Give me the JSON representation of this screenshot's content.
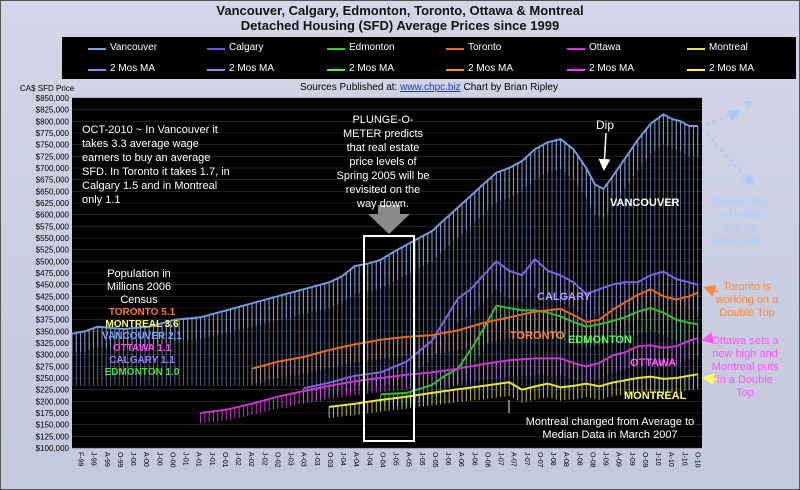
{
  "title_line1": "Vancouver, Calgary, Edmonton, Toronto, Ottawa & Montreal",
  "title_line2": "Detached Housing (SFD) Average Prices since 1999",
  "legend": [
    {
      "name": "Vancouver",
      "color": "#7aa3e0"
    },
    {
      "name": "Calgary",
      "color": "#7a4fe0"
    },
    {
      "name": "Edmonton",
      "color": "#39c83a"
    },
    {
      "name": "Toronto",
      "color": "#e06a2a"
    },
    {
      "name": "Ottawa",
      "color": "#d33ad3"
    },
    {
      "name": "Montreal",
      "color": "#e6e24a"
    }
  ],
  "ma_label": "2 Mos MA",
  "sources_label": "Sources Published at:",
  "sources_url": "www.chpc.biz",
  "credit": "Chart by Brian Ripley",
  "y_axis_label": "CA$ SFD Price",
  "annotations": {
    "oct2010": "OCT-2010 ~ In Vancouver it takes 3.3 average wage earners to buy an average SFD. In Toronto it takes 1.7, in Calgary 1.5 and in Montreal only 1.1",
    "plunge": "PLUNGE-O-METER predicts that real estate price levels of Spring 2005 will be revisited on the way down.",
    "dip": "Dip",
    "question": "?",
    "double_dip": "Double Dip or Double Top for Vancouver ?",
    "toronto_top": "Toronto is working on a Double Top",
    "ottawa_high": "Ottawa sets a new high and Montreal puts in a Double Top",
    "montreal_changed": "Montreal changed from Average to Median Data in March 2007",
    "population_header": "Population in Millions 2006 Census",
    "population": [
      {
        "text": "TORONTO 5.1",
        "color": "#ff7a2a"
      },
      {
        "text": "MONTREAL 3.6",
        "color": "#ffff55"
      },
      {
        "text": "VANCOUVER 2.1",
        "color": "#6fa8ff"
      },
      {
        "text": "OTTAWA 1.1",
        "color": "#ff4df0"
      },
      {
        "text": "CALGARY 1.1",
        "color": "#a07dff"
      },
      {
        "text": "EDMONTON 1.0",
        "color": "#44e044"
      }
    ]
  },
  "chart_data": {
    "type": "line",
    "title": "Vancouver, Calgary, Edmonton, Toronto, Ottawa & Montreal Detached Housing (SFD) Average Prices since 1999",
    "ylabel": "CA$ SFD Price",
    "ylim": [
      100000,
      850000
    ],
    "y_ticks": [
      "$100,000",
      "$125,000",
      "$150,000",
      "$175,000",
      "$200,000",
      "$225,000",
      "$250,000",
      "$275,000",
      "$300,000",
      "$325,000",
      "$350,000",
      "$375,000",
      "$400,000",
      "$425,000",
      "$450,000",
      "$475,000",
      "$500,000",
      "$525,000",
      "$550,000",
      "$575,000",
      "$600,000",
      "$625,000",
      "$650,000",
      "$675,000",
      "$700,000",
      "$725,000",
      "$750,000",
      "$775,000",
      "$800,000",
      "$825,000",
      "$850,000"
    ],
    "x_ticks": [
      "F-99",
      "J-99",
      "A-99",
      "O-99",
      "J-00",
      "A-00",
      "J-00",
      "O-00",
      "J-01",
      "A-01",
      "J-01",
      "O-01",
      "J-02",
      "A-02",
      "J-02",
      "O-02",
      "J-03",
      "A-03",
      "J-03",
      "O-03",
      "J-04",
      "A-04",
      "J-04",
      "O-04",
      "J-05",
      "A-05",
      "J-05",
      "O-05",
      "J-06",
      "A-06",
      "J-06",
      "O-06",
      "J-07",
      "A-07",
      "J-07",
      "O-07",
      "J-08",
      "A-08",
      "J-08",
      "O-08",
      "J-09",
      "A-09",
      "J-09",
      "O-09",
      "J-10",
      "A-10",
      "J-10",
      "O-10"
    ],
    "series_labels": [
      {
        "text": "VANCOUVER",
        "color": "#ffffff"
      },
      {
        "text": "CALGARY",
        "color": "#b79cff"
      },
      {
        "text": "TORONTO",
        "color": "#ff8a3a"
      },
      {
        "text": "EDMONTON",
        "color": "#55ff55"
      },
      {
        "text": "OTTAWA",
        "color": "#ff55ff"
      },
      {
        "text": "MONTREAL",
        "color": "#ffff66"
      }
    ],
    "series": [
      {
        "name": "Vancouver",
        "color": "#6f9be0",
        "values": [
          [
            0,
            345000
          ],
          [
            3,
            350000
          ],
          [
            6,
            360000
          ],
          [
            12,
            355000
          ],
          [
            18,
            360000
          ],
          [
            24,
            375000
          ],
          [
            30,
            380000
          ],
          [
            36,
            395000
          ],
          [
            42,
            410000
          ],
          [
            48,
            425000
          ],
          [
            54,
            440000
          ],
          [
            60,
            455000
          ],
          [
            63,
            468000
          ],
          [
            66,
            490000
          ],
          [
            69,
            495000
          ],
          [
            72,
            503000
          ],
          [
            75,
            520000
          ],
          [
            78,
            535000
          ],
          [
            81,
            550000
          ],
          [
            84,
            565000
          ],
          [
            87,
            590000
          ],
          [
            90,
            615000
          ],
          [
            93,
            640000
          ],
          [
            96,
            665000
          ],
          [
            99,
            690000
          ],
          [
            102,
            700000
          ],
          [
            105,
            715000
          ],
          [
            108,
            740000
          ],
          [
            111,
            755000
          ],
          [
            114,
            762000
          ],
          [
            117,
            740000
          ],
          [
            120,
            700000
          ],
          [
            122,
            665000
          ],
          [
            124,
            655000
          ],
          [
            126,
            680000
          ],
          [
            129,
            720000
          ],
          [
            132,
            760000
          ],
          [
            135,
            795000
          ],
          [
            138,
            815000
          ],
          [
            140,
            805000
          ],
          [
            142,
            800000
          ],
          [
            144,
            790000
          ],
          [
            146,
            790000
          ]
        ]
      },
      {
        "name": "Calgary",
        "color": "#8060e6",
        "values": [
          [
            54,
            228000
          ],
          [
            60,
            240000
          ],
          [
            66,
            255000
          ],
          [
            72,
            262000
          ],
          [
            78,
            285000
          ],
          [
            84,
            330000
          ],
          [
            87,
            375000
          ],
          [
            90,
            420000
          ],
          [
            93,
            440000
          ],
          [
            96,
            470000
          ],
          [
            99,
            500000
          ],
          [
            102,
            480000
          ],
          [
            105,
            470000
          ],
          [
            108,
            505000
          ],
          [
            111,
            480000
          ],
          [
            114,
            470000
          ],
          [
            117,
            455000
          ],
          [
            120,
            430000
          ],
          [
            123,
            440000
          ],
          [
            126,
            450000
          ],
          [
            129,
            455000
          ],
          [
            132,
            455000
          ],
          [
            135,
            470000
          ],
          [
            138,
            478000
          ],
          [
            141,
            462000
          ],
          [
            144,
            455000
          ],
          [
            146,
            450000
          ]
        ]
      },
      {
        "name": "Edmonton",
        "color": "#2fbf33",
        "values": [
          [
            72,
            215000
          ],
          [
            78,
            218000
          ],
          [
            84,
            235000
          ],
          [
            87,
            255000
          ],
          [
            90,
            270000
          ],
          [
            93,
            310000
          ],
          [
            96,
            355000
          ],
          [
            99,
            405000
          ],
          [
            102,
            400000
          ],
          [
            105,
            395000
          ],
          [
            108,
            395000
          ],
          [
            111,
            390000
          ],
          [
            114,
            382000
          ],
          [
            117,
            370000
          ],
          [
            120,
            360000
          ],
          [
            123,
            365000
          ],
          [
            126,
            372000
          ],
          [
            129,
            380000
          ],
          [
            132,
            392000
          ],
          [
            135,
            400000
          ],
          [
            138,
            390000
          ],
          [
            141,
            375000
          ],
          [
            144,
            368000
          ],
          [
            146,
            365000
          ]
        ]
      },
      {
        "name": "Toronto",
        "color": "#e2691f",
        "values": [
          [
            42,
            270000
          ],
          [
            48,
            285000
          ],
          [
            54,
            295000
          ],
          [
            60,
            310000
          ],
          [
            66,
            322000
          ],
          [
            72,
            332000
          ],
          [
            78,
            338000
          ],
          [
            84,
            342000
          ],
          [
            90,
            352000
          ],
          [
            96,
            368000
          ],
          [
            102,
            380000
          ],
          [
            108,
            392000
          ],
          [
            114,
            398000
          ],
          [
            117,
            385000
          ],
          [
            120,
            370000
          ],
          [
            123,
            375000
          ],
          [
            126,
            395000
          ],
          [
            129,
            412000
          ],
          [
            132,
            428000
          ],
          [
            135,
            440000
          ],
          [
            138,
            425000
          ],
          [
            141,
            418000
          ],
          [
            144,
            425000
          ],
          [
            146,
            433000
          ]
        ]
      },
      {
        "name": "Ottawa",
        "color": "#c936cf",
        "values": [
          [
            30,
            175000
          ],
          [
            36,
            182000
          ],
          [
            42,
            195000
          ],
          [
            48,
            210000
          ],
          [
            54,
            222000
          ],
          [
            60,
            233000
          ],
          [
            66,
            243000
          ],
          [
            72,
            250000
          ],
          [
            78,
            257000
          ],
          [
            84,
            262000
          ],
          [
            90,
            270000
          ],
          [
            96,
            280000
          ],
          [
            102,
            288000
          ],
          [
            108,
            292000
          ],
          [
            114,
            292000
          ],
          [
            117,
            282000
          ],
          [
            120,
            275000
          ],
          [
            123,
            282000
          ],
          [
            126,
            298000
          ],
          [
            129,
            305000
          ],
          [
            132,
            318000
          ],
          [
            135,
            320000
          ],
          [
            138,
            315000
          ],
          [
            141,
            318000
          ],
          [
            144,
            330000
          ],
          [
            146,
            335000
          ]
        ]
      },
      {
        "name": "Montreal",
        "color": "#e8e540",
        "values": [
          [
            60,
            188000
          ],
          [
            66,
            195000
          ],
          [
            72,
            203000
          ],
          [
            78,
            210000
          ],
          [
            84,
            218000
          ],
          [
            90,
            226000
          ],
          [
            96,
            233000
          ],
          [
            102,
            241000
          ],
          [
            105,
            225000
          ],
          [
            108,
            232000
          ],
          [
            111,
            238000
          ],
          [
            114,
            230000
          ],
          [
            117,
            233000
          ],
          [
            120,
            238000
          ],
          [
            123,
            232000
          ],
          [
            126,
            240000
          ],
          [
            129,
            245000
          ],
          [
            132,
            250000
          ],
          [
            135,
            253000
          ],
          [
            138,
            248000
          ],
          [
            141,
            250000
          ],
          [
            144,
            255000
          ],
          [
            146,
            258000
          ]
        ]
      }
    ]
  }
}
